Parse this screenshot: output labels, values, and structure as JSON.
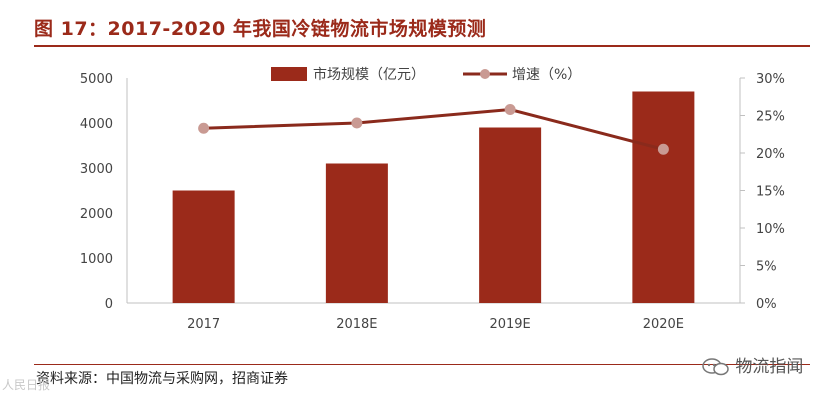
{
  "figure": {
    "title": "图 17：2017-2020 年我国冷链物流市场规模预测",
    "source": "资料来源：中国物流与采购网，招商证券",
    "watermark_right": "物流指闻",
    "watermark_left": "人民日报"
  },
  "colors": {
    "accent": "#9b2a1a",
    "bar": "#9b2a1a",
    "line": "#8a2a1c",
    "marker": "#c99a93",
    "axis": "#c0c0c0",
    "text": "#444444"
  },
  "chart_data": {
    "type": "bar",
    "categories": [
      "2017",
      "2018E",
      "2019E",
      "2020E"
    ],
    "series": [
      {
        "name": "市场规模（亿元）",
        "type": "bar",
        "axis": "left",
        "values": [
          2500,
          3100,
          3900,
          4700
        ]
      },
      {
        "name": "增速（%）",
        "type": "line",
        "axis": "right",
        "values": [
          0.233,
          0.24,
          0.258,
          0.205
        ]
      }
    ],
    "y_left": {
      "min": 0,
      "max": 5000,
      "ticks": [
        "0",
        "1000",
        "2000",
        "3000",
        "4000",
        "5000"
      ]
    },
    "y_right": {
      "min": 0,
      "max": 0.3,
      "ticks": [
        "0%",
        "5%",
        "10%",
        "15%",
        "20%",
        "25%",
        "30%"
      ]
    },
    "legend_position": "top-center",
    "grid": false
  }
}
